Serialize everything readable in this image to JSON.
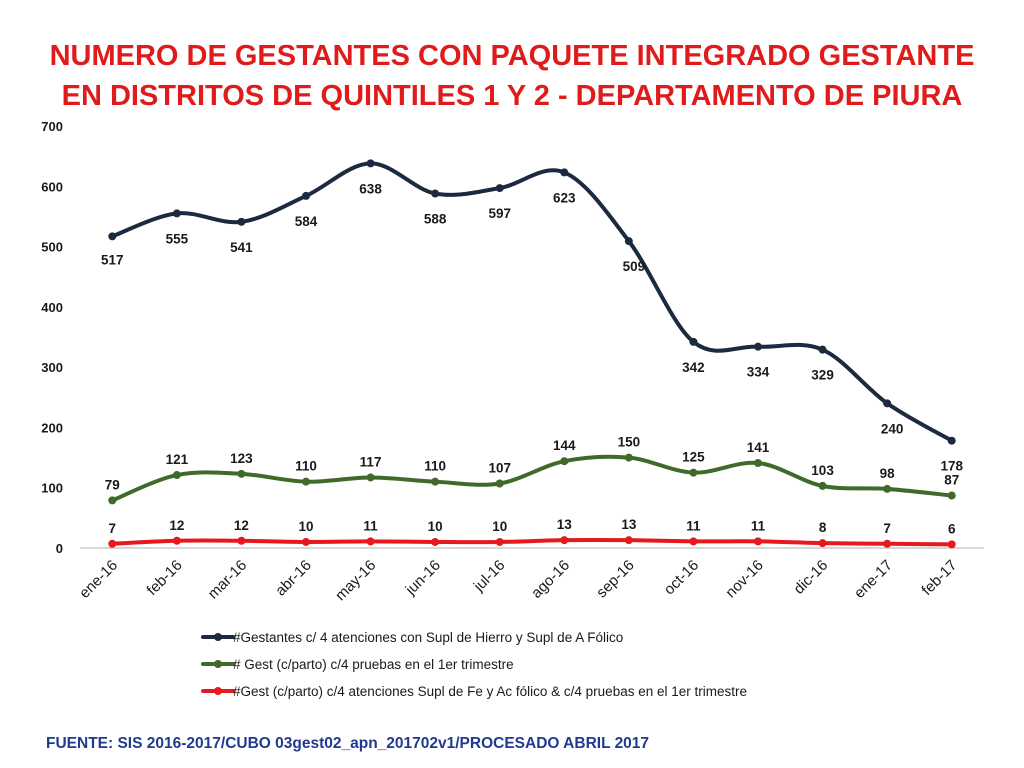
{
  "title_line1": "NUMERO DE GESTANTES CON PAQUETE INTEGRADO GESTANTE",
  "title_line2": "EN DISTRITOS DE QUINTILES 1 Y 2 - DEPARTAMENTO DE PIURA",
  "source": "FUENTE: SIS 2016-2017/CUBO 03gest02_apn_201702v1/PROCESADO ABRIL 2017",
  "chart_data": {
    "type": "line",
    "title": "NUMERO DE GESTANTES CON PAQUETE INTEGRADO GESTANTE EN DISTRITOS DE QUINTILES 1 Y 2 - DEPARTAMENTO DE PIURA",
    "categories": [
      "ene-16",
      "feb-16",
      "mar-16",
      "abr-16",
      "may-16",
      "jun-16",
      "jul-16",
      "ago-16",
      "sep-16",
      "oct-16",
      "nov-16",
      "dic-16",
      "ene-17",
      "feb-17"
    ],
    "ylim": [
      0,
      700
    ],
    "yticks": [
      0,
      100,
      200,
      300,
      400,
      500,
      600,
      700
    ],
    "grid": false,
    "smooth": true,
    "legend_position": "bottom",
    "series": [
      {
        "name": "#Gestantes c/ 4 atenciones con Supl de Hierro y Supl de A Fólico",
        "color": "#1b2a3e",
        "values": [
          517,
          555,
          541,
          584,
          638,
          588,
          597,
          623,
          509,
          342,
          334,
          329,
          240,
          178
        ]
      },
      {
        "name": "# Gest (c/parto) c/4 pruebas en el 1er trimestre",
        "color": "#3f6a2a",
        "values": [
          79,
          121,
          123,
          110,
          117,
          110,
          107,
          144,
          150,
          125,
          141,
          103,
          98,
          87
        ]
      },
      {
        "name": "#Gest (c/parto) c/4 atenciones Supl de Fe y Ac fólico & c/4 pruebas en el 1er trimestre",
        "color": "#e5191e",
        "values": [
          7,
          12,
          12,
          10,
          11,
          10,
          10,
          13,
          13,
          11,
          11,
          8,
          7,
          6
        ]
      }
    ]
  }
}
